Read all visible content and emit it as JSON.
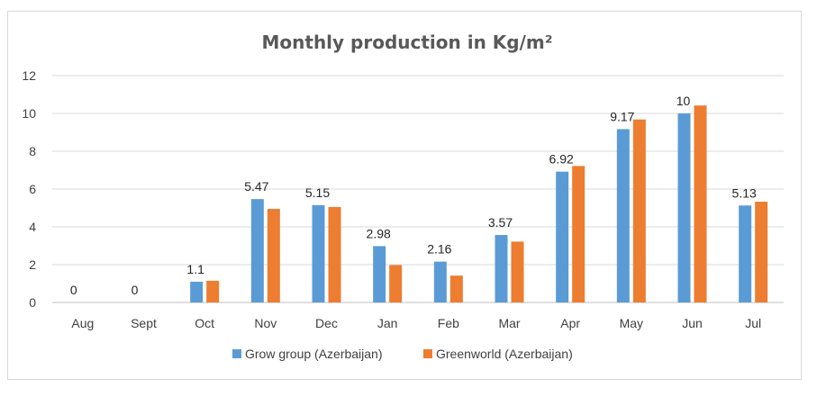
{
  "chart_data": {
    "type": "bar",
    "title": "Monthly production in Kg/m²",
    "xlabel": "",
    "ylabel": "",
    "ylim": [
      0,
      12
    ],
    "yticks": [
      0,
      2,
      4,
      6,
      8,
      10,
      12
    ],
    "grid": true,
    "legend_position": "bottom",
    "categories": [
      "Aug",
      "Sept",
      "Oct",
      "Nov",
      "Dec",
      "Jan",
      "Feb",
      "Mar",
      "Apr",
      "May",
      "Jun",
      "Jul"
    ],
    "series": [
      {
        "name": "Grow group (Azerbaijan)",
        "color": "#5B9BD5",
        "values": [
          0,
          0,
          1.1,
          5.47,
          5.15,
          2.98,
          2.16,
          3.57,
          6.92,
          9.17,
          10,
          5.13
        ],
        "data_labels": [
          "0",
          "0",
          "1.1",
          "5.47",
          "5.15",
          "2.98",
          "2.16",
          "3.57",
          "6.92",
          "9.17",
          "10",
          "5.13"
        ]
      },
      {
        "name": "Greenworld (Azerbaijan)",
        "color": "#ED7D31",
        "values": [
          0,
          0,
          1.15,
          4.95,
          5.05,
          1.98,
          1.42,
          3.22,
          7.22,
          9.68,
          10.42,
          5.33
        ]
      }
    ]
  }
}
